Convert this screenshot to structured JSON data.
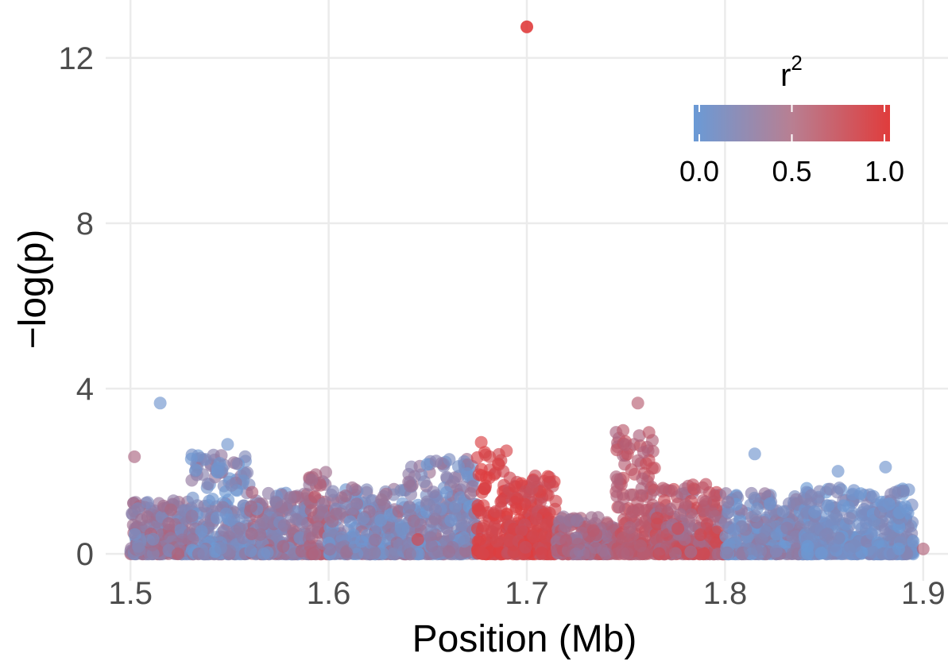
{
  "chart_data": {
    "type": "scatter",
    "title": "",
    "xlabel": "Position (Mb)",
    "ylabel": "−log(p)",
    "xlim": [
      1.4875,
      1.9125
    ],
    "ylim": [
      -0.65,
      13.4
    ],
    "x_ticks": [
      1.5,
      1.6,
      1.7,
      1.8,
      1.9
    ],
    "x_tick_labels": [
      "1.5",
      "1.6",
      "1.7",
      "1.8",
      "1.9"
    ],
    "y_ticks": [
      0,
      4,
      8,
      12
    ],
    "y_tick_labels": [
      "0",
      "4",
      "8",
      "12"
    ],
    "grid": true,
    "legend": {
      "title_base": "r",
      "title_superscript": "2",
      "placement": "top-right",
      "gradient_low_color": "#6a9ad6",
      "gradient_mid_color": "#b87f92",
      "gradient_high_color": "#e03c3c",
      "tick_labels": [
        "0.0",
        "0.5",
        "1.0"
      ],
      "tick_values": [
        0.0,
        0.5,
        1.0
      ]
    },
    "color_scale": {
      "low": "#6a9ad6",
      "high": "#e03c3c",
      "domain": [
        0,
        1
      ]
    },
    "point_opacity": 0.65,
    "notable_points": [
      {
        "x": 1.7,
        "y": 12.75,
        "r2": 1.0
      },
      {
        "x": 1.515,
        "y": 3.65,
        "r2": 0.05
      },
      {
        "x": 1.756,
        "y": 3.65,
        "r2": 0.65
      },
      {
        "x": 1.549,
        "y": 2.65,
        "r2": 0.05
      },
      {
        "x": 1.677,
        "y": 2.7,
        "r2": 0.95
      },
      {
        "x": 1.815,
        "y": 2.42,
        "r2": 0.05
      },
      {
        "x": 1.857,
        "y": 2.0,
        "r2": 0.05
      },
      {
        "x": 1.881,
        "y": 2.1,
        "r2": 0.05
      },
      {
        "x": 1.502,
        "y": 2.35,
        "r2": 0.55
      },
      {
        "x": 1.645,
        "y": 0.35,
        "r2": 0.9
      },
      {
        "x": 1.9,
        "y": 0.12,
        "r2": 0.6
      }
    ],
    "background_density": [
      {
        "x_range": [
          1.5,
          1.53
        ],
        "max_y": 1.3,
        "r2_range": [
          0.1,
          0.6
        ]
      },
      {
        "x_range": [
          1.53,
          1.56
        ],
        "max_y": 2.4,
        "r2_range": [
          0.0,
          0.4
        ]
      },
      {
        "x_range": [
          1.56,
          1.59
        ],
        "max_y": 1.5,
        "r2_range": [
          0.05,
          0.6
        ]
      },
      {
        "x_range": [
          1.59,
          1.6
        ],
        "max_y": 2.0,
        "r2_range": [
          0.3,
          0.7
        ]
      },
      {
        "x_range": [
          1.6,
          1.64
        ],
        "max_y": 1.6,
        "r2_range": [
          0.0,
          0.5
        ]
      },
      {
        "x_range": [
          1.64,
          1.675
        ],
        "max_y": 2.3,
        "r2_range": [
          0.0,
          0.45
        ]
      },
      {
        "x_range": [
          1.675,
          1.69
        ],
        "max_y": 2.5,
        "r2_range": [
          0.85,
          1.0
        ]
      },
      {
        "x_range": [
          1.69,
          1.715
        ],
        "max_y": 1.9,
        "r2_range": [
          0.75,
          1.0
        ]
      },
      {
        "x_range": [
          1.715,
          1.745
        ],
        "max_y": 0.9,
        "r2_range": [
          0.3,
          0.8
        ]
      },
      {
        "x_range": [
          1.745,
          1.765
        ],
        "max_y": 3.0,
        "r2_range": [
          0.55,
          0.8
        ]
      },
      {
        "x_range": [
          1.765,
          1.8
        ],
        "max_y": 1.7,
        "r2_range": [
          0.4,
          0.9
        ]
      },
      {
        "x_range": [
          1.8,
          1.84
        ],
        "max_y": 1.5,
        "r2_range": [
          0.0,
          0.4
        ]
      },
      {
        "x_range": [
          1.84,
          1.895
        ],
        "max_y": 1.6,
        "r2_range": [
          0.0,
          0.25
        ]
      }
    ]
  }
}
